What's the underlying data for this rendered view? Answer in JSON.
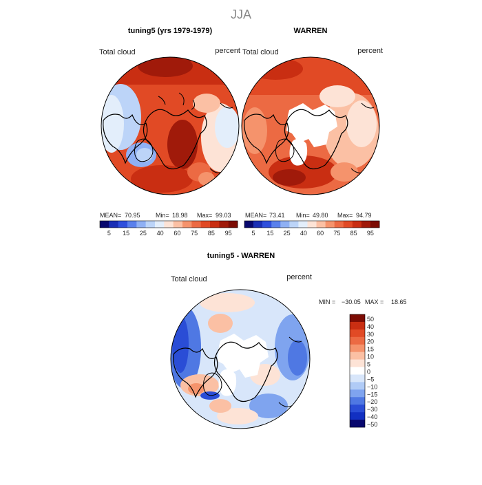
{
  "season": "JJA",
  "panels": [
    {
      "title": "tuning5 (yrs 1979-1979)",
      "left_label": "Total cloud",
      "right_label": "percent",
      "stats": {
        "mean_label": "MEAN=",
        "mean": "70.95",
        "min_label": "Min=",
        "min": "18.98",
        "max_label": "Max=",
        "max": "99.03"
      },
      "colorbar": {
        "colors": [
          "#08086e",
          "#1a2fb5",
          "#2f4fdc",
          "#5a80ec",
          "#8fb0f4",
          "#bcd4f8",
          "#e3eefb",
          "#fde3d6",
          "#fbc0a4",
          "#f5936c",
          "#ec6a43",
          "#e14a25",
          "#c92e12",
          "#a01a0a",
          "#7c0c04"
        ],
        "ticks": [
          "5",
          "15",
          "25",
          "40",
          "60",
          "75",
          "85",
          "95"
        ]
      }
    },
    {
      "title": "WARREN",
      "left_label": "Total cloud",
      "right_label": "percent",
      "stats": {
        "mean_label": "MEAN=",
        "mean": "73.41",
        "min_label": "Min=",
        "min": "49.80",
        "max_label": "Max=",
        "max": "94.79"
      },
      "colorbar": {
        "colors": [
          "#08086e",
          "#1a2fb5",
          "#2f4fdc",
          "#5a80ec",
          "#8fb0f4",
          "#bcd4f8",
          "#e3eefb",
          "#fde3d6",
          "#fbc0a4",
          "#f5936c",
          "#ec6a43",
          "#e14a25",
          "#c92e12",
          "#a01a0a",
          "#7c0c04"
        ],
        "ticks": [
          "5",
          "15",
          "25",
          "40",
          "60",
          "75",
          "85",
          "95"
        ]
      }
    },
    {
      "title": "tuning5 - WARREN",
      "left_label": "Total cloud",
      "right_label": "percent",
      "minmax": {
        "min_label": "MIN =",
        "min": "−30.05",
        "max_label": "MAX =",
        "max": "18.65"
      },
      "colorbar": {
        "colors": [
          "#7c0c04",
          "#c92e12",
          "#e14a25",
          "#ec6a43",
          "#f5936c",
          "#fbc0a4",
          "#fde3d6",
          "#ffffff",
          "#d8e6fa",
          "#b0cbf6",
          "#7fa4ef",
          "#4f78e3",
          "#2a4dd6",
          "#1230c2",
          "#08086e"
        ],
        "ticks": [
          "50",
          "40",
          "30",
          "20",
          "15",
          "10",
          "5",
          "0",
          "−5",
          "−10",
          "−15",
          "−20",
          "−30",
          "−40",
          "−50"
        ]
      }
    }
  ]
}
